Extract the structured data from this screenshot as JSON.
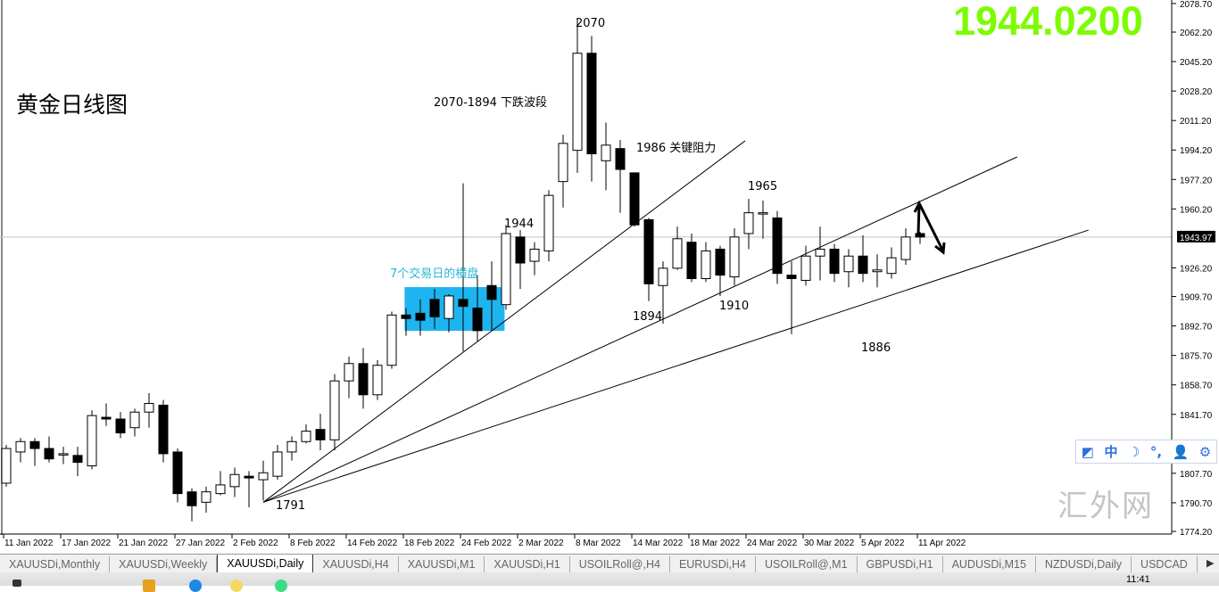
{
  "chart_data": {
    "type": "candlestick",
    "symbol_timeframe": "XAUUSDi,Daily",
    "ylim": [
      1774.2,
      2080
    ],
    "y_tick_labels": [
      "2078.70",
      "2062.20",
      "2045.20",
      "2028.20",
      "2011.20",
      "1994.20",
      "1977.20",
      "1960.20",
      "1926.20",
      "1909.70",
      "1892.70",
      "1875.70",
      "1858.70",
      "1841.70",
      "1807.70",
      "1790.70",
      "1774.20"
    ],
    "x_tick_labels": [
      "11 Jan 2022",
      "17 Jan 2022",
      "21 Jan 2022",
      "27 Jan 2022",
      "2 Feb 2022",
      "8 Feb 2022",
      "14 Feb 2022",
      "18 Feb 2022",
      "24 Feb 2022",
      "2 Mar 2022",
      "8 Mar 2022",
      "14 Mar 2022",
      "18 Mar 2022",
      "24 Mar 2022",
      "30 Mar 2022",
      "5 Apr 2022",
      "11 Apr 2022"
    ],
    "x_tick_every_bars": 4,
    "current_price": "1943.97",
    "grid": false,
    "colors": {
      "bull_body": "#ffffff",
      "bear_body": "#000000",
      "outline": "#000000",
      "range_box": "#1EB4F0",
      "range_label": "#29B6D6",
      "price_line": "#c0c0c0"
    },
    "ohlc": [
      [
        1802,
        1824,
        1800,
        1822
      ],
      [
        1820,
        1828,
        1814,
        1826
      ],
      [
        1826,
        1828,
        1812,
        1822
      ],
      [
        1822,
        1829,
        1814,
        1816
      ],
      [
        1819,
        1823,
        1813,
        1819
      ],
      [
        1818,
        1823,
        1806,
        1814
      ],
      [
        1812,
        1844,
        1810,
        1841
      ],
      [
        1840,
        1848,
        1835,
        1839
      ],
      [
        1839,
        1843,
        1828,
        1831
      ],
      [
        1834,
        1845,
        1829,
        1843
      ],
      [
        1843,
        1854,
        1834,
        1848
      ],
      [
        1847,
        1850,
        1814,
        1819
      ],
      [
        1820,
        1822,
        1791,
        1796
      ],
      [
        1797,
        1799,
        1780,
        1789
      ],
      [
        1791,
        1800,
        1785,
        1797
      ],
      [
        1796,
        1809,
        1795,
        1801
      ],
      [
        1800,
        1811,
        1794,
        1807
      ],
      [
        1806,
        1809,
        1788,
        1805
      ],
      [
        1804,
        1815,
        1792,
        1808
      ],
      [
        1806,
        1824,
        1804,
        1820
      ],
      [
        1820,
        1829,
        1815,
        1826
      ],
      [
        1826,
        1836,
        1825,
        1832
      ],
      [
        1833,
        1842,
        1821,
        1827
      ],
      [
        1827,
        1865,
        1821,
        1861
      ],
      [
        1861,
        1875,
        1851,
        1871
      ],
      [
        1871,
        1880,
        1845,
        1853
      ],
      [
        1853,
        1873,
        1850,
        1870
      ],
      [
        1870,
        1901,
        1868,
        1899
      ],
      [
        1899,
        1903,
        1887,
        1897
      ],
      [
        1900,
        1908,
        1887,
        1896
      ],
      [
        1908,
        1914,
        1891,
        1898
      ],
      [
        1897,
        1911,
        1889,
        1910
      ],
      [
        1908,
        1975,
        1878,
        1904
      ],
      [
        1903,
        1922,
        1884,
        1890
      ],
      [
        1916,
        1930,
        1890,
        1908
      ],
      [
        1905,
        1951,
        1902,
        1946
      ],
      [
        1944,
        1948,
        1914,
        1929
      ],
      [
        1930,
        1941,
        1922,
        1937
      ],
      [
        1936,
        1971,
        1930,
        1968
      ],
      [
        1976,
        2003,
        1961,
        1998
      ],
      [
        1994,
        2070,
        1981,
        2050
      ],
      [
        2050,
        2060,
        1976,
        1992
      ],
      [
        1988,
        2010,
        1971,
        1997
      ],
      [
        1995,
        2000,
        1958,
        1983
      ],
      [
        1981,
        1981,
        1950,
        1951
      ],
      [
        1954,
        1955,
        1907,
        1917
      ],
      [
        1916,
        1930,
        1894,
        1926
      ],
      [
        1926,
        1950,
        1925,
        1943
      ],
      [
        1941,
        1946,
        1918,
        1920
      ],
      [
        1920,
        1941,
        1918,
        1936
      ],
      [
        1937,
        1939,
        1910,
        1922
      ],
      [
        1921,
        1949,
        1916,
        1944
      ],
      [
        1946,
        1966,
        1937,
        1958
      ],
      [
        1958,
        1965,
        1943,
        1958
      ],
      [
        1955,
        1959,
        1917,
        1923
      ],
      [
        1922,
        1930,
        1888,
        1920
      ],
      [
        1919,
        1939,
        1916,
        1933
      ],
      [
        1933,
        1950,
        1919,
        1937
      ],
      [
        1937,
        1940,
        1918,
        1923
      ],
      [
        1924,
        1937,
        1915,
        1933
      ],
      [
        1933,
        1945,
        1918,
        1923
      ],
      [
        1924,
        1934,
        1915,
        1925
      ],
      [
        1923,
        1938,
        1920,
        1932
      ],
      [
        1931,
        1949,
        1928,
        1944
      ],
      [
        1946,
        1947,
        1940,
        1944
      ]
    ],
    "trendlines": [
      {
        "from": [
          18,
          1791
        ],
        "to": [
          51.75,
          1999.5
        ]
      },
      {
        "from": [
          18,
          1791
        ],
        "to": [
          70.8,
          1990.2
        ]
      },
      {
        "from": [
          18,
          1791
        ],
        "to": [
          75.8,
          1948.0
        ]
      }
    ],
    "range_box": {
      "bars": [
        27.9,
        34.9
      ],
      "prices": [
        1889.9,
        1915.1
      ]
    },
    "annotations": [
      "2070",
      "2070-1894 下跌波段",
      "1986 关键阻力",
      "1965",
      "1944",
      "7个交易日的横盘",
      "1894",
      "1910",
      "1886",
      "1791"
    ]
  },
  "overlay": {
    "big_price": "1944.0200",
    "title": "黄金日线图"
  },
  "widget": [
    {
      "icon": "edit-icon",
      "glyph": "◩"
    },
    {
      "icon": "chinese-input-icon",
      "glyph": "中"
    },
    {
      "icon": "moon-icon",
      "glyph": "☽"
    },
    {
      "icon": "punctuation-icon",
      "glyph": "°,"
    },
    {
      "icon": "user-icon",
      "glyph": "👤"
    },
    {
      "icon": "gear-icon",
      "glyph": "⚙"
    }
  ],
  "tabs": [
    "XAUUSDi,Monthly",
    "XAUUSDi,Weekly",
    "XAUUSDi,Daily",
    "XAUUSDi,H4",
    "XAUUSDi,M1",
    "XAUUSDi,H1",
    "USOILRoll@,H4",
    "EURUSDi,H4",
    "USOILRoll@,M1",
    "GBPUSDi,H1",
    "AUDUSDi,M15",
    "NZDUSDi,Daily",
    "USDCAD"
  ],
  "active_tab": "XAUUSDi,Daily",
  "taskbar": {
    "clock": "11:41"
  },
  "watermark": "汇外网"
}
